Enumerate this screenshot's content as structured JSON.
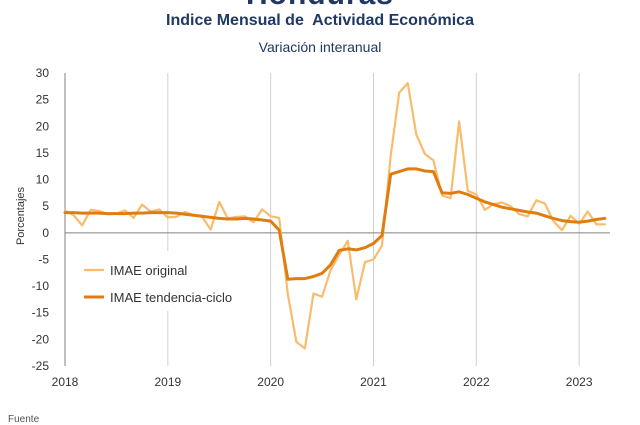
{
  "header": {
    "country": "Honduras",
    "title": "Indice Mensual de  Actividad Económica",
    "subtitle": "Variación interanual",
    "source_label": "Fuente"
  },
  "colors": {
    "original": "#f8bc6c",
    "trend": "#e07d10",
    "grid": "#d0d0d0",
    "zero_axis": "#808080",
    "text": "#333333",
    "title": "#1f3864"
  },
  "chart_data": {
    "type": "line",
    "title": "Indice Mensual de  Actividad Económica",
    "subtitle": "Variación interanual",
    "xlabel": "",
    "ylabel": "Porcentajes",
    "ylim": [
      -25,
      30
    ],
    "yticks": [
      -25,
      -20,
      -15,
      -10,
      -5,
      0,
      5,
      10,
      15,
      20,
      25,
      30
    ],
    "xlim": [
      2018.0,
      2023.3
    ],
    "xticks": [
      2018,
      2019,
      2020,
      2021,
      2022,
      2023
    ],
    "grid": "vertical",
    "legend_position": "lower-left",
    "series": [
      {
        "name": "IMAE original",
        "color": "#f8bc6c",
        "x": [
          2018.0,
          2018.083,
          2018.167,
          2018.25,
          2018.333,
          2018.417,
          2018.5,
          2018.583,
          2018.667,
          2018.75,
          2018.833,
          2018.917,
          2019.0,
          2019.083,
          2019.167,
          2019.25,
          2019.333,
          2019.417,
          2019.5,
          2019.583,
          2019.667,
          2019.75,
          2019.833,
          2019.917,
          2020.0,
          2020.083,
          2020.167,
          2020.25,
          2020.333,
          2020.417,
          2020.5,
          2020.583,
          2020.667,
          2020.75,
          2020.833,
          2020.917,
          2021.0,
          2021.083,
          2021.167,
          2021.25,
          2021.333,
          2021.417,
          2021.5,
          2021.583,
          2021.667,
          2021.75,
          2021.833,
          2021.917,
          2022.0,
          2022.083,
          2022.167,
          2022.25,
          2022.333,
          2022.417,
          2022.5,
          2022.583,
          2022.667,
          2022.75,
          2022.833,
          2022.917,
          2023.0,
          2023.083,
          2023.167,
          2023.25,
          2023.333
        ],
        "y": [
          4.2,
          3.3,
          1.4,
          4.3,
          4.1,
          3.5,
          3.6,
          4.2,
          2.8,
          5.3,
          4.0,
          4.4,
          2.9,
          3.0,
          3.9,
          3.3,
          3.0,
          0.6,
          5.8,
          2.7,
          3.0,
          3.1,
          2.0,
          4.4,
          3.1,
          2.8,
          -11.5,
          -20.5,
          -21.7,
          -11.4,
          -12.0,
          -7.0,
          -4.1,
          -1.5,
          -12.5,
          -5.5,
          -5.0,
          -2.4,
          14.5,
          26.3,
          28.1,
          18.4,
          14.8,
          13.6,
          7.0,
          6.5,
          20.9,
          7.9,
          7.2,
          4.3,
          5.4,
          5.7,
          5.0,
          3.5,
          3.1,
          6.1,
          5.5,
          2.2,
          0.5,
          3.2,
          1.7,
          4.0,
          1.6,
          1.6,
          null
        ]
      },
      {
        "name": "IMAE tendencia-ciclo",
        "color": "#e07d10",
        "x": [
          2018.0,
          2018.083,
          2018.167,
          2018.25,
          2018.333,
          2018.417,
          2018.5,
          2018.583,
          2018.667,
          2018.75,
          2018.833,
          2018.917,
          2019.0,
          2019.083,
          2019.167,
          2019.25,
          2019.333,
          2019.417,
          2019.5,
          2019.583,
          2019.667,
          2019.75,
          2019.833,
          2019.917,
          2020.0,
          2020.083,
          2020.167,
          2020.25,
          2020.333,
          2020.417,
          2020.5,
          2020.583,
          2020.667,
          2020.75,
          2020.833,
          2020.917,
          2021.0,
          2021.083,
          2021.167,
          2021.25,
          2021.333,
          2021.417,
          2021.5,
          2021.583,
          2021.667,
          2021.75,
          2021.833,
          2021.917,
          2022.0,
          2022.083,
          2022.167,
          2022.25,
          2022.333,
          2022.417,
          2022.5,
          2022.583,
          2022.667,
          2022.75,
          2022.833,
          2022.917,
          2023.0,
          2023.083,
          2023.167,
          2023.25,
          2023.333
        ],
        "y": [
          3.8,
          3.8,
          3.7,
          3.7,
          3.7,
          3.6,
          3.6,
          3.6,
          3.7,
          3.7,
          3.8,
          3.8,
          3.8,
          3.7,
          3.5,
          3.3,
          3.1,
          2.9,
          2.7,
          2.6,
          2.6,
          2.7,
          2.6,
          2.4,
          2.2,
          0.5,
          -8.7,
          -8.6,
          -8.6,
          -8.2,
          -7.6,
          -6.0,
          -3.3,
          -3.0,
          -3.2,
          -2.8,
          -2.0,
          -0.5,
          11.0,
          11.5,
          12.0,
          12.0,
          11.6,
          11.5,
          7.5,
          7.4,
          7.7,
          7.2,
          6.5,
          5.8,
          5.3,
          4.8,
          4.5,
          4.2,
          3.9,
          3.7,
          3.2,
          2.7,
          2.3,
          2.1,
          2.0,
          2.2,
          2.5,
          2.7,
          null
        ]
      }
    ]
  }
}
